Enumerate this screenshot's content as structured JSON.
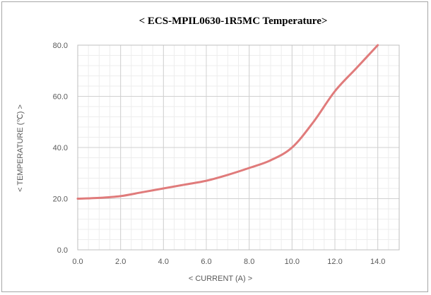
{
  "chart_data": {
    "type": "line",
    "title": "< ECS-MPIL0630-1R5MC Temperature>",
    "xlabel": "< CURRENT (A) >",
    "ylabel": "< TEMPERATURE (℃) >",
    "xlim": [
      0,
      15
    ],
    "ylim": [
      0,
      80
    ],
    "x_ticks": [
      0,
      2,
      4,
      6,
      8,
      10,
      12,
      14
    ],
    "x_tick_labels": [
      "0.0",
      "2.0",
      "4.0",
      "6.0",
      "8.0",
      "10.0",
      "12.0",
      "14.0"
    ],
    "y_ticks": [
      0,
      20,
      40,
      60,
      80
    ],
    "y_tick_labels": [
      "0.0",
      "20.0",
      "40.0",
      "60.0",
      "80.0"
    ],
    "grid": true,
    "legend": "none",
    "series": [
      {
        "color": "#e07b7b",
        "x": [
          0,
          1,
          2,
          3,
          4,
          5,
          6,
          7,
          8,
          9,
          10,
          11,
          12,
          13,
          14
        ],
        "y": [
          20,
          20.3,
          21,
          22.5,
          24,
          25.5,
          27,
          29.3,
          32,
          35,
          40,
          50,
          62,
          71,
          80
        ]
      }
    ]
  }
}
